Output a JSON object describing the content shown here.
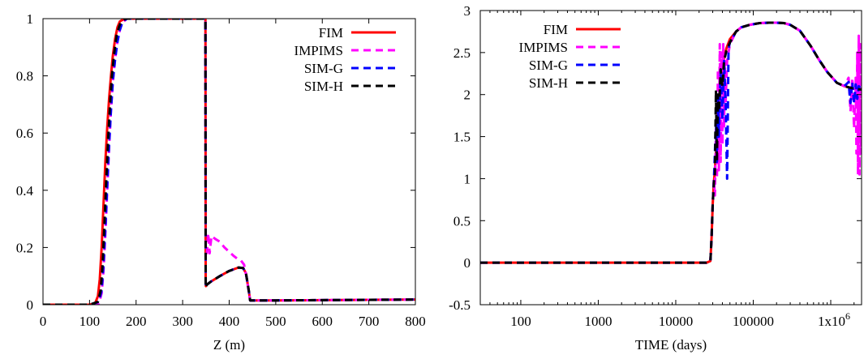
{
  "chart_data": [
    {
      "type": "line",
      "title": "",
      "xlabel": "Z (m)",
      "ylabel": "",
      "xlim": [
        0,
        800
      ],
      "ylim": [
        0,
        1
      ],
      "xscale": "linear",
      "xticks": [
        0,
        100,
        200,
        300,
        400,
        500,
        600,
        700,
        800
      ],
      "xtick_labels": [
        "0",
        "100",
        "200",
        "300",
        "400",
        "500",
        "600",
        "700",
        "800"
      ],
      "yticks": [
        0,
        0.2,
        0.4,
        0.6,
        0.8,
        1
      ],
      "ytick_labels": [
        "0",
        "0.2",
        "0.4",
        "0.6",
        "0.8",
        "1"
      ],
      "grid": false,
      "legend_position": "top-right",
      "series": [
        {
          "name": "FIM",
          "color": "#ff0000",
          "dash": "solid",
          "x": [
            0,
            100,
            112,
            118,
            122,
            126,
            130,
            134,
            138,
            142,
            146,
            150,
            155,
            160,
            165,
            170,
            180,
            190,
            200,
            250,
            300,
            349,
            349.5,
            350,
            352,
            360,
            380,
            400,
            420,
            430,
            436,
            442,
            445,
            500,
            600,
            700,
            800
          ],
          "y": [
            0,
            0,
            0.005,
            0.03,
            0.09,
            0.2,
            0.35,
            0.5,
            0.62,
            0.72,
            0.8,
            0.87,
            0.93,
            0.97,
            0.99,
            0.995,
            1,
            1,
            1,
            1,
            1,
            1,
            0.07,
            0.065,
            0.07,
            0.08,
            0.1,
            0.118,
            0.13,
            0.128,
            0.11,
            0.05,
            0.015,
            0.015,
            0.016,
            0.017,
            0.018
          ]
        },
        {
          "name": "IMPIMS",
          "color": "#ff00ff",
          "dash": "dash",
          "x": [
            0,
            100,
            120,
            126,
            130,
            134,
            138,
            142,
            146,
            150,
            155,
            160,
            165,
            170,
            180,
            200,
            250,
            300,
            349,
            349.5,
            352,
            355,
            358,
            362,
            370,
            380,
            390,
            400,
            410,
            418,
            425,
            432,
            438,
            445,
            500,
            600,
            700,
            800
          ],
          "y": [
            0,
            0,
            0.005,
            0.04,
            0.12,
            0.25,
            0.4,
            0.55,
            0.68,
            0.78,
            0.86,
            0.92,
            0.96,
            0.985,
            1,
            1,
            1,
            1,
            1,
            0.2,
            0.18,
            0.25,
            0.18,
            0.24,
            0.23,
            0.22,
            0.2,
            0.185,
            0.17,
            0.16,
            0.155,
            0.14,
            0.09,
            0.015,
            0.015,
            0.016,
            0.017,
            0.018
          ]
        },
        {
          "name": "SIM-G",
          "color": "#0000ff",
          "dash": "dash",
          "x": [
            0,
            100,
            120,
            126,
            130,
            134,
            138,
            142,
            146,
            150,
            155,
            160,
            165,
            170,
            180,
            200,
            250,
            300,
            349,
            349.5,
            352,
            360,
            380,
            400,
            420,
            430,
            436,
            442,
            445,
            500,
            600,
            700,
            800
          ],
          "y": [
            0,
            0,
            0.01,
            0.05,
            0.14,
            0.27,
            0.42,
            0.56,
            0.68,
            0.78,
            0.86,
            0.92,
            0.96,
            0.985,
            1,
            1,
            1,
            1,
            1,
            0.06,
            0.07,
            0.08,
            0.1,
            0.118,
            0.13,
            0.128,
            0.11,
            0.05,
            0.015,
            0.015,
            0.016,
            0.017,
            0.018
          ]
        },
        {
          "name": "SIM-H",
          "color": "#000000",
          "dash": "dash",
          "x": [
            0,
            100,
            118,
            124,
            128,
            132,
            136,
            140,
            144,
            148,
            153,
            158,
            163,
            168,
            178,
            200,
            250,
            300,
            349,
            349.5,
            352,
            360,
            380,
            400,
            420,
            430,
            436,
            442,
            445,
            500,
            600,
            700,
            800
          ],
          "y": [
            0,
            0,
            0.01,
            0.05,
            0.14,
            0.28,
            0.44,
            0.58,
            0.7,
            0.8,
            0.88,
            0.94,
            0.97,
            0.99,
            1,
            1,
            1,
            1,
            1,
            0.06,
            0.07,
            0.08,
            0.1,
            0.118,
            0.13,
            0.128,
            0.11,
            0.05,
            0.015,
            0.015,
            0.016,
            0.017,
            0.018
          ]
        }
      ]
    },
    {
      "type": "line",
      "title": "",
      "xlabel": "TIME (days)",
      "ylabel": "",
      "xlim": [
        30,
        2500000
      ],
      "ylim": [
        -0.5,
        3
      ],
      "xscale": "log",
      "xticks": [
        100,
        1000,
        10000,
        100000,
        1000000
      ],
      "xtick_labels": [
        "100",
        "1000",
        "10000",
        "100000",
        "1x10^6"
      ],
      "yticks": [
        -0.5,
        0,
        0.5,
        1,
        1.5,
        2,
        2.5,
        3
      ],
      "ytick_labels": [
        "-0.5",
        "0",
        "0.5",
        "1",
        "1.5",
        "2",
        "2.5",
        "3"
      ],
      "grid": false,
      "legend_position": "top-left",
      "series": [
        {
          "name": "FIM",
          "color": "#ff0000",
          "dash": "solid",
          "x": [
            30,
            1000,
            10000,
            25000,
            28000,
            29000,
            30000,
            31000,
            32000,
            34000,
            36000,
            40000,
            45000,
            50000,
            60000,
            70000,
            90000,
            120000,
            160000,
            200000,
            250000,
            300000,
            400000,
            550000,
            700000,
            900000,
            1200000,
            1500000,
            2000000,
            2500000
          ],
          "y": [
            0,
            0,
            0,
            0,
            0.02,
            0.3,
            0.7,
            0.95,
            1.1,
            1.5,
            1.9,
            2.35,
            2.55,
            2.66,
            2.75,
            2.8,
            2.83,
            2.85,
            2.855,
            2.855,
            2.85,
            2.83,
            2.76,
            2.58,
            2.42,
            2.27,
            2.14,
            2.1,
            2.07,
            2.06
          ]
        },
        {
          "name": "IMPIMS",
          "color": "#ff00ff",
          "dash": "dash",
          "x": [
            30,
            1000,
            10000,
            25000,
            28000,
            29000,
            30000,
            31000,
            32000,
            33000,
            34000,
            35000,
            36000,
            37000,
            38000,
            39000,
            40000,
            41000,
            42000,
            43000,
            44000,
            46000,
            50000,
            60000,
            70000,
            90000,
            120000,
            160000,
            200000,
            250000,
            300000,
            400000,
            550000,
            700000,
            900000,
            1200000,
            1500000,
            1700000,
            1800000,
            1900000,
            2000000,
            2100000,
            2150000,
            2200000,
            2250000,
            2300000,
            2350000,
            2400000,
            2450000,
            2500000
          ],
          "y": [
            0,
            0,
            0,
            0,
            0.02,
            0.3,
            0.7,
            1.0,
            0.8,
            1.6,
            1.0,
            2.3,
            1.1,
            2.6,
            1.2,
            2.5,
            1.4,
            2.6,
            1.6,
            2.4,
            1.9,
            2.4,
            2.6,
            2.75,
            2.8,
            2.83,
            2.85,
            2.855,
            2.855,
            2.85,
            2.83,
            2.76,
            2.58,
            2.42,
            2.27,
            2.14,
            2.1,
            2.2,
            1.8,
            2.2,
            1.6,
            2.2,
            1.3,
            2.5,
            1.05,
            2.7,
            1.05,
            2.6,
            1.3,
            2.05
          ]
        },
        {
          "name": "SIM-G",
          "color": "#0000ff",
          "dash": "dash",
          "x": [
            30,
            1000,
            10000,
            25000,
            28000,
            29000,
            30000,
            31000,
            32000,
            33000,
            34000,
            35000,
            36000,
            38000,
            40000,
            42000,
            44000,
            46000,
            48000,
            50000,
            60000,
            70000,
            90000,
            120000,
            160000,
            200000,
            250000,
            300000,
            400000,
            550000,
            700000,
            900000,
            1200000,
            1500000,
            1700000,
            1800000,
            1900000,
            2000000,
            2100000,
            2200000,
            2300000,
            2500000
          ],
          "y": [
            0,
            0,
            0,
            0,
            0.02,
            0.3,
            0.7,
            0.95,
            1.3,
            1.7,
            1.2,
            2.0,
            1.5,
            2.3,
            1.7,
            2.4,
            1.9,
            1.0,
            2.55,
            2.62,
            2.75,
            2.8,
            2.83,
            2.85,
            2.855,
            2.855,
            2.85,
            2.83,
            2.76,
            2.58,
            2.42,
            2.27,
            2.14,
            2.1,
            2.15,
            1.9,
            2.15,
            1.9,
            2.12,
            1.95,
            2.1,
            2.06
          ]
        },
        {
          "name": "SIM-H",
          "color": "#000000",
          "dash": "dash",
          "x": [
            30,
            1000,
            10000,
            25000,
            28000,
            29000,
            30000,
            31000,
            32000,
            33000,
            34000,
            35000,
            36000,
            38000,
            40000,
            42000,
            45000,
            50000,
            60000,
            70000,
            90000,
            120000,
            160000,
            200000,
            250000,
            300000,
            400000,
            550000,
            700000,
            900000,
            1200000,
            1500000,
            2000000,
            2500000
          ],
          "y": [
            0,
            0,
            0,
            0,
            0.02,
            0.3,
            0.7,
            0.95,
            1.05,
            2.05,
            1.2,
            2.0,
            1.8,
            2.3,
            2.1,
            2.4,
            2.52,
            2.62,
            2.75,
            2.8,
            2.83,
            2.85,
            2.855,
            2.855,
            2.85,
            2.83,
            2.76,
            2.58,
            2.42,
            2.27,
            2.14,
            2.1,
            2.07,
            2.06
          ]
        }
      ]
    }
  ]
}
